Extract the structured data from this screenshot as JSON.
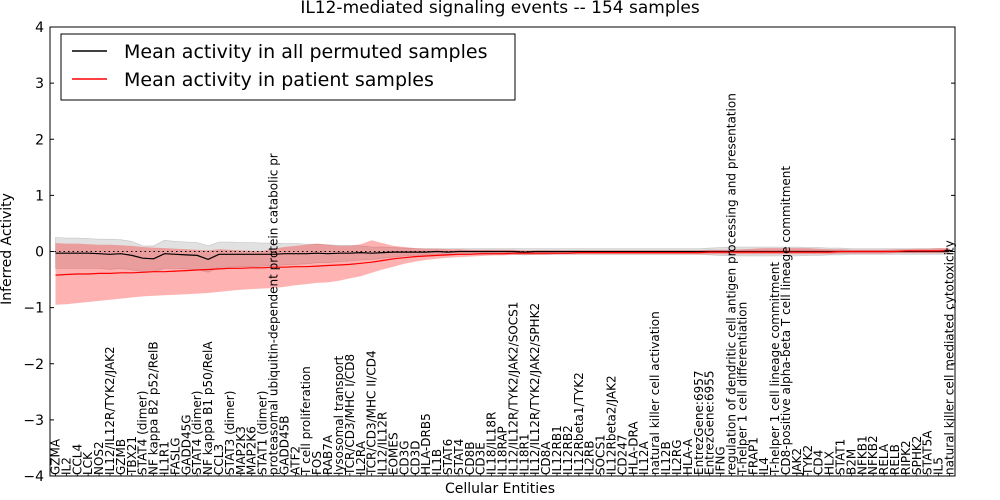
{
  "chart_data": {
    "type": "line",
    "title": "IL12-mediated signaling events -- 154 samples",
    "xlabel": "Cellular Entities",
    "ylabel": "Inferred Activity",
    "ylim": [
      -4,
      4
    ],
    "yticks": [
      -4,
      -3,
      -2,
      -1,
      0,
      1,
      2,
      3,
      4
    ],
    "legend_position": "top-left",
    "categories": [
      "GZMA",
      "IL2",
      "CCL4",
      "LCK",
      "NOS2",
      "IL12/IL12R/TYK2/JAK2",
      "GZMB",
      "TBX21",
      "STAT4 (dimer)",
      "NF kappa B2 p52/RelB",
      "IL1R1",
      "FASLG",
      "GADD45G",
      "STAT4 (dimer)",
      "NF kappa B1 p50/RelA",
      "CCL3",
      "STAT3 (dimer)",
      "MAP2K3",
      "MAP2K6",
      "STAT1 (dimer)",
      "proteasomal ubiquitin-dependent protein catabolic pr",
      "GADD45B",
      "ATF2",
      "T cell proliferation",
      "FOS",
      "RAB7A",
      "lysosomal transport",
      "TCR/CD3/MHC I/CD8",
      "IL2RA",
      "TCR/CD3/MHC II/CD4",
      "IL12/IL12R",
      "EOMES",
      "CD3G",
      "CD3D",
      "HLA-DRB5",
      "IL1B",
      "STAT6",
      "STAT4",
      "CD8B",
      "CD3E",
      "IL18/IL18R",
      "IL18RAP",
      "IL12/IL12R/TYK2/JAK2/SOCS1",
      "IL18R1",
      "IL12/IL12R/TYK2/JAK2/SPHK2",
      "CD8A",
      "IL12RB1",
      "IL12RB2",
      "IL12Rbeta1/TYK2",
      "IL2RB",
      "SOCS1",
      "IL12Rbeta2/JAK2",
      "CD247",
      "HLA-DRA",
      "IL12A",
      "natural killer cell activation",
      "IL12B",
      "IL2RG",
      "HLA-A",
      "EntrezGene:6957",
      "EntrezGene:6955",
      "IFNG",
      "regulation of dendritic cell antigen processing and presentation",
      "T-helper 1 cell differentiation",
      "FRAP1",
      "IL4",
      "T-helper 1 cell lineage commitment",
      "CD8-positive alpha-beta T cell lineage commitment",
      "JAK2",
      "TYK2",
      "CD4",
      "HLX",
      "STAT1",
      "B2M",
      "NFKB1",
      "NFKB2",
      "RELA",
      "RELB",
      "RIPK2",
      "SPHK2",
      "STAT5A",
      "IL5",
      "natural killer cell mediated cytotoxicity"
    ],
    "series": [
      {
        "name": "Mean activity in all permuted samples",
        "color": "#000000",
        "values": [
          -0.03,
          -0.03,
          -0.03,
          -0.03,
          -0.04,
          -0.05,
          -0.04,
          -0.07,
          -0.12,
          -0.13,
          -0.04,
          -0.05,
          -0.06,
          -0.07,
          -0.14,
          -0.05,
          -0.05,
          -0.05,
          -0.05,
          -0.05,
          -0.05,
          -0.04,
          -0.04,
          -0.04,
          -0.03,
          -0.04,
          -0.03,
          -0.03,
          -0.02,
          -0.03,
          -0.02,
          -0.01,
          -0.01,
          -0.01,
          -0.01,
          0.0,
          -0.01,
          0.0,
          0.0,
          0.0,
          0.0,
          0.0,
          0.0,
          -0.01,
          0.0,
          0.0,
          0.0,
          0.0,
          0.0,
          0.0,
          0.0,
          0.0,
          0.0,
          0.0,
          0.0,
          0.0,
          0.0,
          0.0,
          0.0,
          0.0,
          0.0,
          0.0,
          0.0,
          0.0,
          0.0,
          0.0,
          0.0,
          0.0,
          0.0,
          0.0,
          0.0,
          0.0,
          0.0,
          0.0,
          0.0,
          0.0,
          0.0,
          0.0,
          0.0,
          0.0,
          0.0,
          0.0,
          0.0
        ],
        "band_upper": [
          0.25,
          0.24,
          0.24,
          0.23,
          0.22,
          0.22,
          0.21,
          0.18,
          0.1,
          0.1,
          0.2,
          0.18,
          0.17,
          0.16,
          0.1,
          0.17,
          0.17,
          0.16,
          0.16,
          0.15,
          0.15,
          0.14,
          0.14,
          0.13,
          0.13,
          0.12,
          0.11,
          0.11,
          0.1,
          0.08,
          0.08,
          0.07,
          0.06,
          0.05,
          0.05,
          0.05,
          0.05,
          0.05,
          0.05,
          0.05,
          0.05,
          0.05,
          0.05,
          0.05,
          0.05,
          0.05,
          0.05,
          0.05,
          0.05,
          0.05,
          0.05,
          0.05,
          0.05,
          0.05,
          0.05,
          0.05,
          0.05,
          0.05,
          0.05,
          0.05,
          0.06,
          0.07,
          0.08,
          0.08,
          0.08,
          0.08,
          0.08,
          0.08,
          0.08,
          0.07,
          0.07,
          0.06,
          0.06,
          0.05,
          0.05,
          0.05,
          0.05,
          0.05,
          0.05,
          0.05,
          0.05,
          0.05,
          0.04
        ],
        "band_lower": [
          -0.3,
          -0.3,
          -0.3,
          -0.3,
          -0.3,
          -0.32,
          -0.3,
          -0.33,
          -0.36,
          -0.36,
          -0.3,
          -0.3,
          -0.31,
          -0.32,
          -0.37,
          -0.28,
          -0.28,
          -0.27,
          -0.27,
          -0.26,
          -0.25,
          -0.24,
          -0.23,
          -0.22,
          -0.2,
          -0.2,
          -0.18,
          -0.17,
          -0.15,
          -0.14,
          -0.12,
          -0.1,
          -0.08,
          -0.07,
          -0.06,
          -0.05,
          -0.05,
          -0.05,
          -0.05,
          -0.05,
          -0.05,
          -0.05,
          -0.05,
          -0.06,
          -0.05,
          -0.05,
          -0.05,
          -0.05,
          -0.05,
          -0.05,
          -0.05,
          -0.05,
          -0.05,
          -0.05,
          -0.05,
          -0.05,
          -0.05,
          -0.05,
          -0.05,
          -0.05,
          -0.06,
          -0.07,
          -0.08,
          -0.08,
          -0.08,
          -0.08,
          -0.08,
          -0.08,
          -0.08,
          -0.07,
          -0.07,
          -0.06,
          -0.06,
          -0.05,
          -0.05,
          -0.05,
          -0.05,
          -0.05,
          -0.05,
          -0.05,
          -0.05,
          -0.05,
          -0.04
        ]
      },
      {
        "name": "Mean activity in patient samples",
        "color": "#ff0000",
        "values": [
          -0.42,
          -0.41,
          -0.4,
          -0.4,
          -0.39,
          -0.39,
          -0.38,
          -0.38,
          -0.37,
          -0.36,
          -0.36,
          -0.35,
          -0.34,
          -0.33,
          -0.32,
          -0.31,
          -0.3,
          -0.3,
          -0.29,
          -0.29,
          -0.28,
          -0.28,
          -0.27,
          -0.27,
          -0.26,
          -0.25,
          -0.24,
          -0.23,
          -0.21,
          -0.19,
          -0.16,
          -0.13,
          -0.11,
          -0.09,
          -0.08,
          -0.07,
          -0.06,
          -0.05,
          -0.05,
          -0.04,
          -0.04,
          -0.04,
          -0.03,
          -0.03,
          -0.03,
          -0.03,
          -0.03,
          -0.03,
          -0.02,
          -0.02,
          -0.02,
          -0.02,
          -0.02,
          -0.02,
          -0.02,
          -0.02,
          -0.02,
          -0.02,
          -0.02,
          -0.02,
          -0.01,
          -0.01,
          -0.01,
          -0.01,
          -0.01,
          -0.01,
          -0.01,
          -0.01,
          -0.01,
          -0.01,
          -0.01,
          -0.01,
          0.0,
          0.0,
          0.0,
          0.0,
          0.0,
          0.0,
          0.01,
          0.01,
          0.01,
          0.01,
          0.02
        ],
        "band_upper": [
          0.15,
          0.14,
          0.14,
          0.13,
          0.12,
          0.12,
          0.11,
          0.1,
          0.08,
          0.07,
          0.06,
          0.05,
          0.04,
          0.03,
          0.02,
          0.04,
          0.03,
          0.02,
          0.01,
          0.01,
          0.05,
          0.08,
          0.1,
          0.12,
          0.14,
          0.12,
          0.1,
          0.1,
          0.13,
          0.2,
          0.15,
          0.1,
          0.08,
          0.06,
          0.05,
          0.05,
          0.04,
          0.04,
          0.03,
          0.03,
          0.03,
          0.03,
          0.03,
          0.02,
          0.02,
          0.02,
          0.02,
          0.02,
          0.02,
          0.02,
          0.02,
          0.02,
          0.02,
          0.02,
          0.02,
          0.02,
          0.02,
          0.02,
          0.02,
          0.02,
          0.03,
          0.03,
          0.03,
          0.04,
          0.05,
          0.06,
          0.06,
          0.06,
          0.06,
          0.06,
          0.05,
          0.04,
          0.04,
          0.03,
          0.03,
          0.03,
          0.03,
          0.04,
          0.04,
          0.05,
          0.05,
          0.06,
          0.06
        ],
        "band_lower": [
          -0.95,
          -0.94,
          -0.92,
          -0.9,
          -0.88,
          -0.86,
          -0.84,
          -0.82,
          -0.8,
          -0.79,
          -0.78,
          -0.77,
          -0.76,
          -0.75,
          -0.74,
          -0.72,
          -0.7,
          -0.68,
          -0.67,
          -0.66,
          -0.65,
          -0.63,
          -0.6,
          -0.58,
          -0.56,
          -0.55,
          -0.52,
          -0.48,
          -0.44,
          -0.38,
          -0.32,
          -0.27,
          -0.22,
          -0.18,
          -0.15,
          -0.13,
          -0.11,
          -0.1,
          -0.09,
          -0.08,
          -0.07,
          -0.07,
          -0.06,
          -0.06,
          -0.06,
          -0.06,
          -0.05,
          -0.05,
          -0.05,
          -0.05,
          -0.05,
          -0.05,
          -0.05,
          -0.05,
          -0.05,
          -0.05,
          -0.05,
          -0.05,
          -0.05,
          -0.05,
          -0.05,
          -0.05,
          -0.05,
          -0.05,
          -0.05,
          -0.05,
          -0.05,
          -0.05,
          -0.05,
          -0.05,
          -0.05,
          -0.05,
          -0.04,
          -0.04,
          -0.04,
          -0.04,
          -0.04,
          -0.03,
          -0.03,
          -0.03,
          -0.03,
          -0.03,
          -0.02
        ]
      }
    ],
    "reference_line": 0
  }
}
